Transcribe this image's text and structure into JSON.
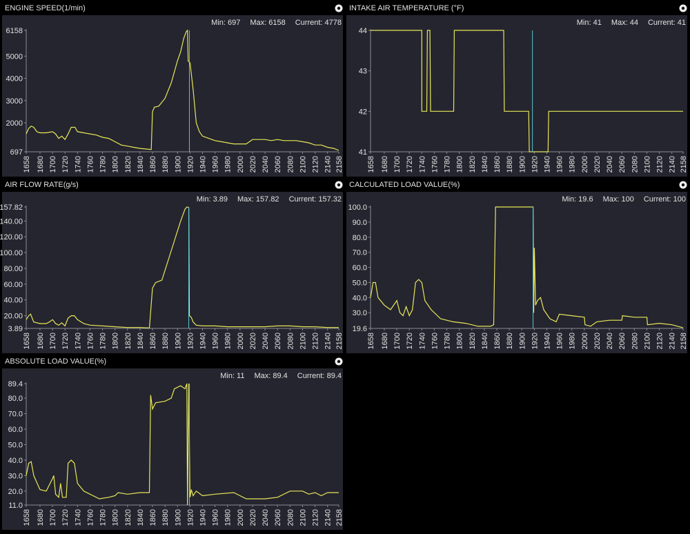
{
  "chart_data": [
    {
      "type": "line",
      "title": "ENGINE SPEED(1/min)",
      "stats": [
        "Min: 697",
        "Max: 6158",
        "Current: 4778"
      ],
      "color": "#e8e85a",
      "cursor_x": 1919,
      "cursor_color": "#5bc8d0",
      "x": [
        1658,
        1662,
        1666,
        1670,
        1675,
        1680,
        1690,
        1700,
        1705,
        1710,
        1715,
        1720,
        1725,
        1730,
        1736,
        1740,
        1750,
        1760,
        1770,
        1780,
        1790,
        1800,
        1810,
        1820,
        1830,
        1840,
        1850,
        1858,
        1860,
        1863,
        1870,
        1880,
        1890,
        1900,
        1905,
        1910,
        1914,
        1916,
        1917,
        1920,
        1925,
        1930,
        1935,
        1940,
        1950,
        1960,
        1970,
        1980,
        1990,
        2000,
        2010,
        2020,
        2030,
        2040,
        2050,
        2060,
        2070,
        2080,
        2090,
        2100,
        2110,
        2120,
        2130,
        2140,
        2150,
        2158
      ],
      "values": [
        1500,
        1750,
        1850,
        1800,
        1600,
        1550,
        1550,
        1600,
        1500,
        1300,
        1400,
        1250,
        1500,
        1800,
        1800,
        1600,
        1550,
        1500,
        1450,
        1350,
        1300,
        1150,
        1000,
        950,
        900,
        850,
        820,
        800,
        2500,
        2700,
        2750,
        3100,
        3800,
        4800,
        5200,
        5800,
        6100,
        6158,
        4778,
        4700,
        3500,
        2000,
        1600,
        1400,
        1300,
        1200,
        1150,
        1100,
        1050,
        1050,
        1050,
        1250,
        1250,
        1250,
        1200,
        1250,
        1200,
        1200,
        1200,
        1150,
        1100,
        1000,
        1000,
        900,
        850,
        760
      ],
      "xlim": [
        1658,
        2158
      ],
      "xticks": [
        1658,
        1680,
        1700,
        1720,
        1740,
        1760,
        1780,
        1800,
        1820,
        1840,
        1860,
        1880,
        1900,
        1920,
        1940,
        1960,
        1980,
        2000,
        2020,
        2040,
        2060,
        2080,
        2100,
        2120,
        2140,
        2158
      ],
      "ylim": [
        697,
        6158
      ],
      "yticks": [
        697,
        2000,
        3000,
        4000,
        5000,
        6158
      ]
    },
    {
      "type": "line",
      "title": "INTAKE AIR TEMPERATURE (°F)",
      "stats": [
        "Min: 41",
        "Max: 44",
        "Current: 41"
      ],
      "color": "#e8e85a",
      "cursor_x": 1917,
      "cursor_color": "#5bc8d0",
      "x": [
        1658,
        1740,
        1740,
        1748,
        1749,
        1753,
        1754,
        1791,
        1792,
        1871,
        1872,
        1911,
        1912,
        1942,
        1943,
        2158
      ],
      "values": [
        44,
        44,
        42,
        42,
        44,
        44,
        42,
        42,
        44,
        44,
        42,
        42,
        41,
        41,
        42,
        42
      ],
      "xlim": [
        1658,
        2158
      ],
      "xticks": [
        1658,
        1680,
        1700,
        1720,
        1740,
        1760,
        1780,
        1800,
        1820,
        1840,
        1860,
        1880,
        1900,
        1920,
        1940,
        1960,
        1980,
        2000,
        2020,
        2040,
        2060,
        2080,
        2100,
        2120,
        2140,
        2158
      ],
      "ylim": [
        41,
        44
      ],
      "yticks": [
        41,
        42,
        43,
        44
      ]
    },
    {
      "type": "line",
      "title": "AIR FLOW RATE(g/s)",
      "stats": [
        "Min: 3.89",
        "Max: 157.82",
        "Current: 157.32"
      ],
      "color": "#e8e85a",
      "cursor_x": 1918,
      "cursor_color": "#5bc8d0",
      "x": [
        1658,
        1662,
        1665,
        1670,
        1680,
        1690,
        1695,
        1700,
        1705,
        1710,
        1715,
        1720,
        1725,
        1730,
        1735,
        1740,
        1750,
        1760,
        1780,
        1800,
        1820,
        1840,
        1855,
        1860,
        1865,
        1875,
        1885,
        1895,
        1905,
        1912,
        1915,
        1918,
        1919,
        1922,
        1925,
        1930,
        1940,
        1960,
        1980,
        2000,
        2020,
        2040,
        2060,
        2080,
        2100,
        2120,
        2140,
        2158
      ],
      "values": [
        15,
        20,
        22,
        12,
        10,
        10,
        12,
        15,
        10,
        8,
        11,
        7,
        17,
        20,
        20,
        15,
        10,
        8,
        7,
        6,
        5,
        5,
        4.5,
        55,
        62,
        65,
        90,
        115,
        140,
        155,
        157.82,
        157.32,
        20,
        18,
        12,
        8,
        7,
        7,
        6,
        6,
        6,
        6,
        7,
        7,
        6,
        6,
        5,
        5
      ],
      "xlim": [
        1658,
        2158
      ],
      "xticks": [
        1658,
        1680,
        1700,
        1720,
        1740,
        1760,
        1780,
        1800,
        1820,
        1840,
        1860,
        1880,
        1900,
        1920,
        1940,
        1960,
        1980,
        2000,
        2020,
        2040,
        2060,
        2080,
        2100,
        2120,
        2140,
        2158
      ],
      "ylim": [
        3.89,
        157.82
      ],
      "yticks": [
        3.89,
        {
          "value": 20,
          "label": "20.00"
        },
        {
          "value": 40,
          "label": "40.00"
        },
        {
          "value": 60,
          "label": "60.00"
        },
        {
          "value": 80,
          "label": "80.00"
        },
        {
          "value": 100,
          "label": "100.00"
        },
        {
          "value": 120,
          "label": "120.00"
        },
        {
          "value": 140,
          "label": "140.00"
        },
        157.82
      ]
    },
    {
      "type": "line",
      "title": "CALCULATED LOAD VALUE(%)",
      "stats": [
        "Min: 19.6",
        "Max: 100",
        "Current: 100"
      ],
      "color": "#e8e85a",
      "cursor_x": 1918,
      "cursor_color": "#5bc8d0",
      "x": [
        1658,
        1662,
        1666,
        1670,
        1680,
        1690,
        1700,
        1705,
        1710,
        1715,
        1720,
        1725,
        1730,
        1735,
        1740,
        1745,
        1755,
        1770,
        1790,
        1810,
        1830,
        1850,
        1855,
        1858,
        1918,
        1919,
        1920,
        1922,
        1925,
        1930,
        1935,
        1945,
        1955,
        1960,
        1980,
        2000,
        2001,
        2010,
        2020,
        2040,
        2060,
        2061,
        2080,
        2100,
        2101,
        2120,
        2140,
        2158
      ],
      "values": [
        40,
        50,
        50,
        40,
        35,
        32,
        38,
        30,
        28,
        34,
        28,
        32,
        50,
        52,
        50,
        38,
        32,
        26,
        24,
        23,
        21,
        21,
        22,
        100,
        100,
        30,
        73,
        35,
        38,
        40,
        32,
        26,
        24,
        29,
        28,
        27,
        22,
        21,
        24,
        25,
        25,
        28,
        27,
        27,
        22,
        23,
        22,
        20
      ],
      "xlim": [
        1658,
        2158
      ],
      "xticks": [
        1658,
        1680,
        1700,
        1720,
        1740,
        1760,
        1780,
        1800,
        1820,
        1840,
        1860,
        1880,
        1900,
        1920,
        1940,
        1960,
        1980,
        2000,
        2020,
        2040,
        2060,
        2080,
        2100,
        2120,
        2140,
        2158
      ],
      "ylim": [
        19.6,
        100
      ],
      "yticks": [
        19.6,
        {
          "value": 30,
          "label": "30.0"
        },
        {
          "value": 40,
          "label": "40.0"
        },
        {
          "value": 50,
          "label": "50.0"
        },
        {
          "value": 60,
          "label": "60.0"
        },
        {
          "value": 70,
          "label": "70.0"
        },
        {
          "value": 80,
          "label": "80.0"
        },
        {
          "value": 90,
          "label": "90.0"
        },
        {
          "value": 100,
          "label": "100.0"
        }
      ]
    },
    {
      "type": "line",
      "title": "ABSOLUTE LOAD VALUE(%)",
      "stats": [
        "Min: 11",
        "Max: 89.4",
        "Current: 89.4"
      ],
      "color": "#e8e85a",
      "cursor_x": 1919,
      "cursor_color": "#5bc8d0",
      "x": [
        1658,
        1662,
        1666,
        1670,
        1680,
        1690,
        1700,
        1702,
        1705,
        1710,
        1713,
        1716,
        1722,
        1725,
        1730,
        1735,
        1740,
        1750,
        1765,
        1775,
        1790,
        1800,
        1805,
        1820,
        1840,
        1855,
        1857,
        1860,
        1865,
        1880,
        1890,
        1895,
        1905,
        1912,
        1915,
        1916,
        1918,
        1920,
        1922,
        1925,
        1930,
        1940,
        1960,
        1990,
        2000,
        2010,
        2040,
        2060,
        2080,
        2100,
        2110,
        2120,
        2130,
        2140,
        2158
      ],
      "values": [
        30,
        38,
        39,
        30,
        21,
        20,
        28,
        30,
        18,
        16,
        25,
        16,
        16,
        38,
        40,
        38,
        25,
        20,
        17,
        15,
        16,
        17,
        19,
        18,
        19,
        19,
        82,
        73,
        77,
        78,
        80,
        86,
        88,
        86,
        89.4,
        11,
        89.4,
        16,
        21,
        17,
        20,
        17,
        18,
        19,
        17,
        15,
        15,
        16,
        20,
        20,
        18,
        19,
        17,
        19,
        19
      ],
      "xlim": [
        1658,
        2158
      ],
      "xticks": [
        1658,
        1680,
        1700,
        1720,
        1740,
        1760,
        1780,
        1800,
        1820,
        1840,
        1860,
        1880,
        1900,
        1920,
        1940,
        1960,
        1980,
        2000,
        2020,
        2040,
        2060,
        2080,
        2100,
        2120,
        2140,
        2158
      ],
      "ylim": [
        11,
        89.4
      ],
      "yticks": [
        {
          "value": 11,
          "label": "11.0"
        },
        {
          "value": 20,
          "label": "20.0"
        },
        {
          "value": 30,
          "label": "30.0"
        },
        {
          "value": 40,
          "label": "40.0"
        },
        {
          "value": 50,
          "label": "50.0"
        },
        {
          "value": 60,
          "label": "60.0"
        },
        {
          "value": 70,
          "label": "70.0"
        },
        {
          "value": 80,
          "label": "80.0"
        },
        89.4
      ]
    }
  ]
}
